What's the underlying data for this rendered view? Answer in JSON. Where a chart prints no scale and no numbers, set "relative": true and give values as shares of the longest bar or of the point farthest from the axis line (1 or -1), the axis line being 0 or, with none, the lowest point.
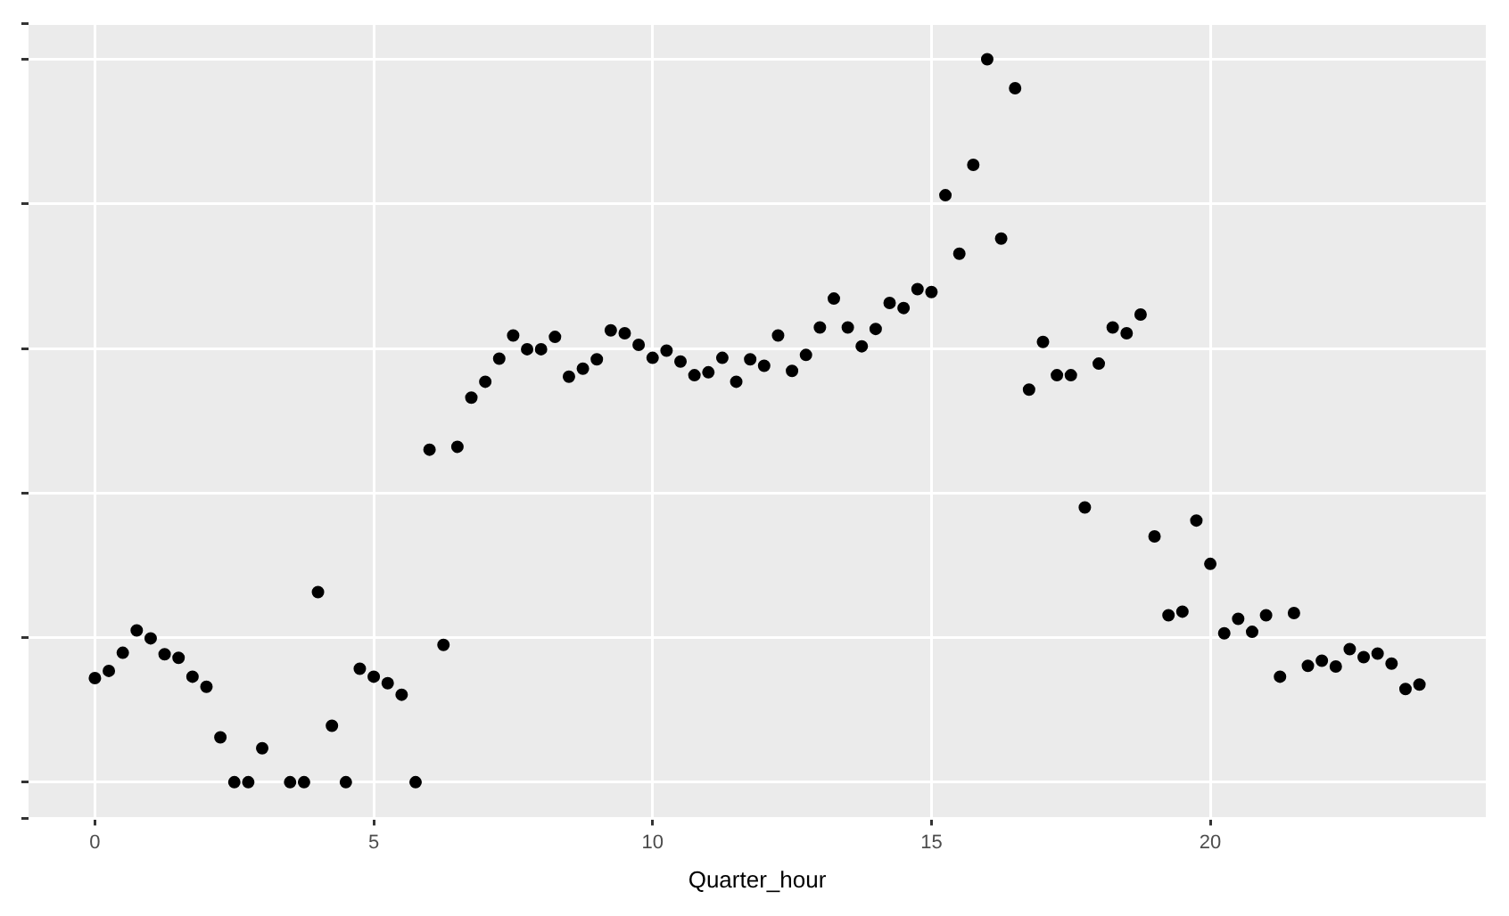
{
  "chart_data": {
    "type": "scatter",
    "xlabel": "Quarter_hour",
    "relative": true,
    "xlim": [
      -1.19,
      24.94
    ],
    "xticks": [
      0,
      5,
      10,
      15,
      20
    ],
    "grid": true,
    "tick_labels": "x",
    "legend": false,
    "marker": "circle",
    "series": [
      {
        "color": "#000000",
        "x": [
          0,
          0.25,
          0.5,
          0.75,
          1,
          1.25,
          1.5,
          1.75,
          2,
          2.25,
          2.5,
          2.75,
          3,
          3.5,
          3.75,
          4,
          4.25,
          4.5,
          4.75,
          5,
          5.25,
          5.5,
          5.75,
          6,
          6.25,
          6.5,
          6.75,
          7,
          7.25,
          7.5,
          7.75,
          8,
          8.25,
          8.5,
          8.75,
          9,
          9.25,
          9.5,
          9.75,
          10,
          10.25,
          10.5,
          10.75,
          11,
          11.25,
          11.5,
          11.75,
          12,
          12.25,
          12.5,
          12.75,
          13,
          13.25,
          13.5,
          13.75,
          14,
          14.25,
          14.5,
          14.75,
          15,
          15.25,
          15.5,
          15.75,
          16,
          16.25,
          16.5,
          16.75,
          17,
          17.25,
          17.5,
          17.75,
          18,
          18.25,
          18.5,
          18.75,
          19,
          19.25,
          19.5,
          19.75,
          20,
          20.25,
          20.5,
          20.75,
          21,
          21.25,
          21.5,
          21.75,
          22,
          22.25,
          22.5,
          22.75,
          23,
          23.25,
          23.5,
          23.75
        ],
        "values": [
          0.144,
          0.154,
          0.179,
          0.21,
          0.199,
          0.177,
          0.172,
          0.146,
          0.132,
          0.062,
          0,
          0,
          0.047,
          0,
          0,
          0.263,
          0.078,
          0,
          0.157,
          0.146,
          0.137,
          0.121,
          0,
          0.46,
          0.19,
          0.464,
          0.532,
          0.554,
          0.586,
          0.618,
          0.599,
          0.599,
          0.616,
          0.561,
          0.572,
          0.585,
          0.625,
          0.621,
          0.605,
          0.587,
          0.597,
          0.582,
          0.563,
          0.567,
          0.587,
          0.554,
          0.585,
          0.576,
          0.618,
          0.569,
          0.591,
          0.629,
          0.669,
          0.629,
          0.603,
          0.627,
          0.663,
          0.656,
          0.682,
          0.678,
          0.812,
          0.731,
          0.854,
          1,
          0.752,
          0.96,
          0.543,
          0.609,
          0.563,
          0.563,
          0.38,
          0.579,
          0.629,
          0.621,
          0.647,
          0.34,
          0.231,
          0.236,
          0.362,
          0.302,
          0.206,
          0.226,
          0.208,
          0.231,
          0.146,
          0.234,
          0.161,
          0.168,
          0.16,
          0.184,
          0.173,
          0.178,
          0.164,
          0.129,
          0.135
        ]
      }
    ]
  }
}
